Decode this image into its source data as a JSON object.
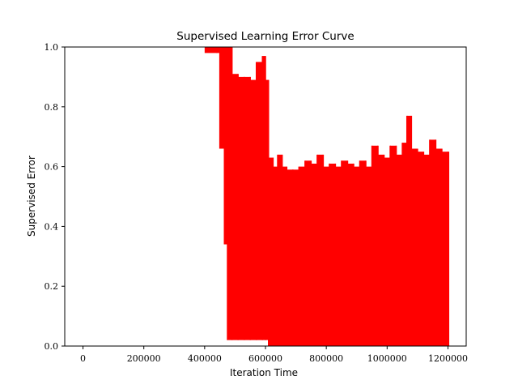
{
  "chart_data": {
    "type": "line",
    "title": "Supervised Learning Error Curve",
    "xlabel": "Iteration Time",
    "ylabel": "Supervised Error",
    "xlim": [
      -60000,
      1260000
    ],
    "ylim": [
      0,
      1.0
    ],
    "x_ticks": [
      0,
      200000,
      400000,
      600000,
      800000,
      1000000,
      1200000
    ],
    "x_tick_labels": [
      "0",
      "200000",
      "400000",
      "600000",
      "800000",
      "1000000",
      "1200000"
    ],
    "y_ticks": [
      0.0,
      0.2,
      0.4,
      0.6,
      0.8,
      1.0
    ],
    "y_tick_labels": [
      "0.0",
      "0.2",
      "0.4",
      "0.6",
      "0.8",
      "1.0"
    ],
    "grid": false,
    "legend": "none",
    "series": [
      {
        "color": "#ff0000",
        "x": [
          400000,
          440000,
          450000,
          465000,
          475000,
          490000,
          510000,
          530000,
          550000,
          570000,
          590000,
          600000,
          610000,
          625000,
          640000,
          655000,
          670000,
          690000,
          710000,
          730000,
          750000,
          770000,
          790000,
          810000,
          830000,
          850000,
          870000,
          890000,
          910000,
          930000,
          950000,
          970000,
          990000,
          1010000,
          1030000,
          1050000,
          1065000,
          1080000,
          1100000,
          1120000,
          1140000,
          1160000,
          1180000,
          1200000
        ],
        "upper": [
          1.0,
          1.0,
          1.0,
          1.0,
          1.0,
          0.91,
          0.9,
          0.9,
          0.89,
          0.95,
          0.97,
          0.89,
          0.63,
          0.6,
          0.64,
          0.6,
          0.59,
          0.59,
          0.6,
          0.62,
          0.61,
          0.64,
          0.6,
          0.61,
          0.6,
          0.62,
          0.61,
          0.6,
          0.62,
          0.6,
          0.67,
          0.64,
          0.63,
          0.67,
          0.64,
          0.68,
          0.77,
          0.66,
          0.65,
          0.64,
          0.69,
          0.66,
          0.65,
          0.65
        ],
        "lower": [
          0.98,
          0.98,
          0.66,
          0.34,
          0.02,
          0.02,
          0.02,
          0.02,
          0.02,
          0.02,
          0.02,
          0.02,
          0.0,
          0.0,
          0.0,
          0.0,
          0.0,
          0.0,
          0.0,
          0.0,
          0.0,
          0.0,
          0.0,
          0.0,
          0.0,
          0.0,
          0.0,
          0.0,
          0.0,
          0.0,
          0.0,
          0.0,
          0.0,
          0.0,
          0.0,
          0.0,
          0.0,
          0.0,
          0.0,
          0.0,
          0.0,
          0.0,
          0.0,
          0.0
        ]
      }
    ]
  }
}
